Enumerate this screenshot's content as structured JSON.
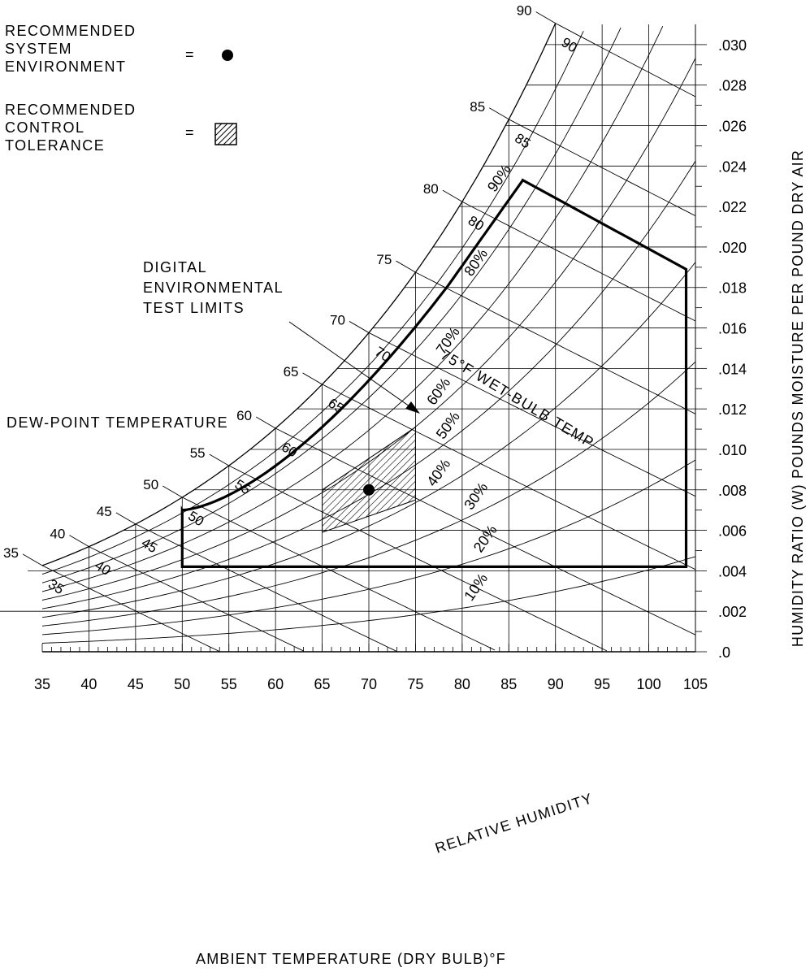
{
  "legend": {
    "system_env_lines": [
      "RECOMMENDED",
      "SYSTEM",
      "ENVIRONMENT"
    ],
    "control_tol_lines": [
      "RECOMMENDED",
      "CONTROL",
      "TOLERANCE"
    ],
    "equals": "="
  },
  "annotations": {
    "test_limits_lines": [
      "DIGITAL",
      "ENVIRONMENTAL",
      "TEST LIMITS"
    ],
    "dew_point": "DEW-POINT TEMPERATURE",
    "wet_bulb": "75°F WET-BULB TEMP",
    "relative_humidity": "RELATIVE HUMIDITY"
  },
  "colors": {
    "ink": "#000000",
    "background": "#ffffff"
  },
  "chart_data": {
    "type": "psychrometric",
    "xlabel": "AMBIENT TEMPERATURE (DRY BULB)°F",
    "ylabel": "HUMIDITY RATIO (W) POUNDS MOISTURE PER POUND DRY AIR",
    "xlim": [
      35,
      105
    ],
    "ylim": [
      0,
      0.031
    ],
    "x_ticks": [
      "35",
      "40",
      "45",
      "50",
      "55",
      "60",
      "65",
      "70",
      "75",
      "80",
      "85",
      "90",
      "95",
      "100",
      "105"
    ],
    "y_ticks": [
      {
        "v": 0.0,
        "label": ".0"
      },
      {
        "v": 0.002,
        "label": ".002"
      },
      {
        "v": 0.004,
        "label": ".004"
      },
      {
        "v": 0.006,
        "label": ".006"
      },
      {
        "v": 0.008,
        "label": ".008"
      },
      {
        "v": 0.01,
        "label": ".010"
      },
      {
        "v": 0.012,
        "label": ".012"
      },
      {
        "v": 0.014,
        "label": ".014"
      },
      {
        "v": 0.016,
        "label": ".016"
      },
      {
        "v": 0.018,
        "label": ".018"
      },
      {
        "v": 0.02,
        "label": ".020"
      },
      {
        "v": 0.022,
        "label": ".022"
      },
      {
        "v": 0.024,
        "label": ".024"
      },
      {
        "v": 0.026,
        "label": ".026"
      },
      {
        "v": 0.028,
        "label": ".028"
      },
      {
        "v": 0.03,
        "label": ".030"
      }
    ],
    "dew_point_labels": [
      "35",
      "40",
      "45",
      "50",
      "55",
      "60",
      "65",
      "70",
      "75",
      "80",
      "85",
      "90"
    ],
    "wet_bulb_labels": [
      "35",
      "40",
      "45",
      "50",
      "55",
      "60",
      "65",
      "70",
      "80",
      "85",
      "90"
    ],
    "rh_curves": [
      {
        "rh": 10,
        "label": "10%"
      },
      {
        "rh": 20,
        "label": "20%"
      },
      {
        "rh": 30,
        "label": "30%"
      },
      {
        "rh": 40,
        "label": "40%"
      },
      {
        "rh": 50,
        "label": "50%"
      },
      {
        "rh": 60,
        "label": "60%"
      },
      {
        "rh": 70,
        "label": "70%"
      },
      {
        "rh": 80,
        "label": "80%"
      },
      {
        "rh": 90,
        "label": "90%"
      }
    ],
    "test_limits_polygon": [
      [
        50,
        0.0042
      ],
      [
        104,
        0.0042
      ],
      [
        104,
        0.0189
      ],
      [
        86.5,
        0.0233
      ],
      [
        86.5,
        0.0233
      ],
      [
        50,
        0.007
      ]
    ],
    "test_limits_upper_wb_temp": 75,
    "control_tolerance": {
      "db_range": [
        65,
        75
      ],
      "rh_range": [
        40,
        60
      ],
      "w_corners": [
        [
          65,
          0.0059
        ],
        [
          65,
          0.008
        ],
        [
          75,
          0.0111
        ],
        [
          75,
          0.0075
        ]
      ]
    },
    "recommended_point": {
      "db": 70,
      "w": 0.008
    }
  }
}
